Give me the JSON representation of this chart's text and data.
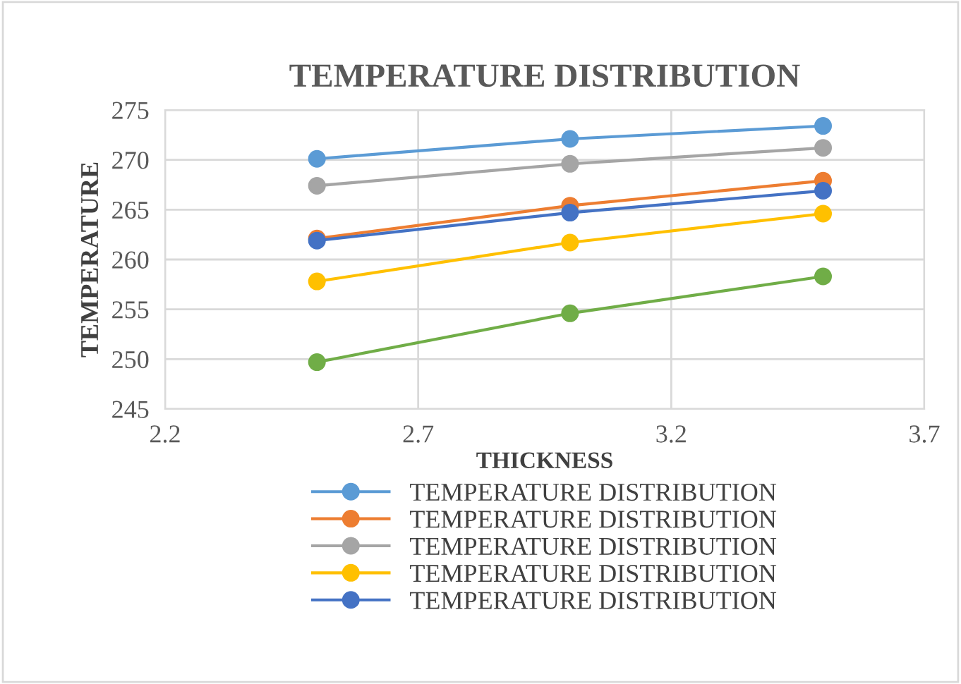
{
  "chart_data": {
    "type": "line",
    "title": "TEMPERATURE DISTRIBUTION",
    "xlabel": "THICKNESS",
    "ylabel": "TEMPERATURE",
    "x": [
      2.5,
      3.0,
      3.5
    ],
    "xlim": [
      2.2,
      3.7
    ],
    "xticks": [
      2.2,
      2.7,
      3.2,
      3.7
    ],
    "ylim": [
      245,
      275
    ],
    "yticks": [
      245,
      250,
      255,
      260,
      265,
      270,
      275
    ],
    "grid": true,
    "legend": "bottom",
    "marker": "circle",
    "line_style": "solid",
    "series": [
      {
        "name": "TEMPERATURE DISTRIBUTION",
        "color": "#5b9bd5",
        "values": [
          270.1,
          272.1,
          273.4
        ]
      },
      {
        "name": "TEMPERATURE DISTRIBUTION",
        "color": "#ed7d31",
        "values": [
          262.1,
          265.4,
          267.9
        ]
      },
      {
        "name": "TEMPERATURE DISTRIBUTION",
        "color": "#a5a5a5",
        "values": [
          267.4,
          269.6,
          271.2
        ]
      },
      {
        "name": "TEMPERATURE DISTRIBUTION",
        "color": "#ffc000",
        "values": [
          257.8,
          261.7,
          264.6
        ]
      },
      {
        "name": "TEMPERATURE DISTRIBUTION",
        "color": "#4472c4",
        "values": [
          261.9,
          264.7,
          266.9
        ]
      },
      {
        "color": "#70ad47",
        "values": [
          249.7,
          254.6,
          258.3
        ]
      }
    ]
  }
}
